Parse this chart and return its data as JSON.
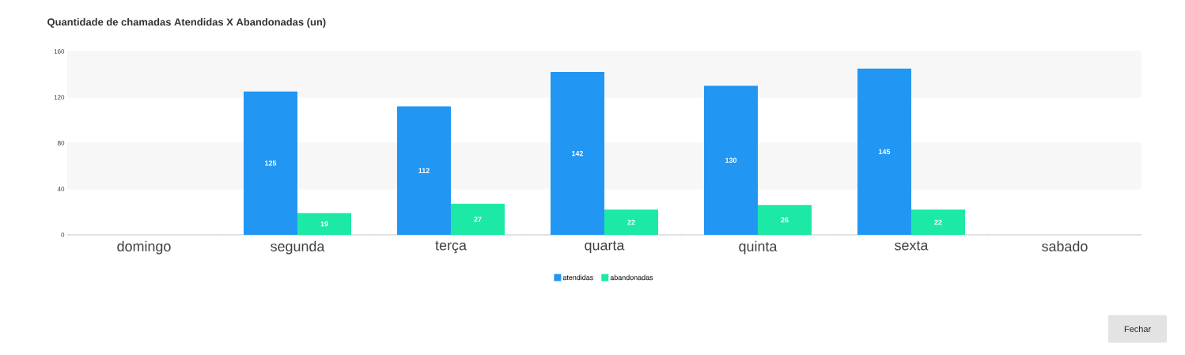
{
  "chart_data": {
    "type": "bar",
    "title": "Quantidade de chamadas Atendidas X Abandonadas (un)",
    "categories": [
      "domingo",
      "segunda",
      "terça",
      "quarta",
      "quinta",
      "sexta",
      "sabado"
    ],
    "series": [
      {
        "name": "atendidas",
        "color": "#2196f3",
        "values": [
          null,
          125,
          112,
          142,
          130,
          145,
          null
        ]
      },
      {
        "name": "abandonadas",
        "color": "#1de9a6",
        "values": [
          null,
          19,
          27,
          22,
          26,
          22,
          null
        ]
      }
    ],
    "ylim": [
      0,
      160
    ],
    "yticks": [
      0,
      40,
      80,
      120,
      160
    ],
    "grid": "y",
    "legend": "bottom",
    "data_labels": true,
    "bands": [
      {
        "axis": "y",
        "from": 40,
        "to": 80,
        "color": "#f7f7f7"
      },
      {
        "axis": "y",
        "from": 120,
        "to": 160,
        "color": "#f7f7f7"
      }
    ],
    "annotations": [
      "Fechar"
    ]
  }
}
